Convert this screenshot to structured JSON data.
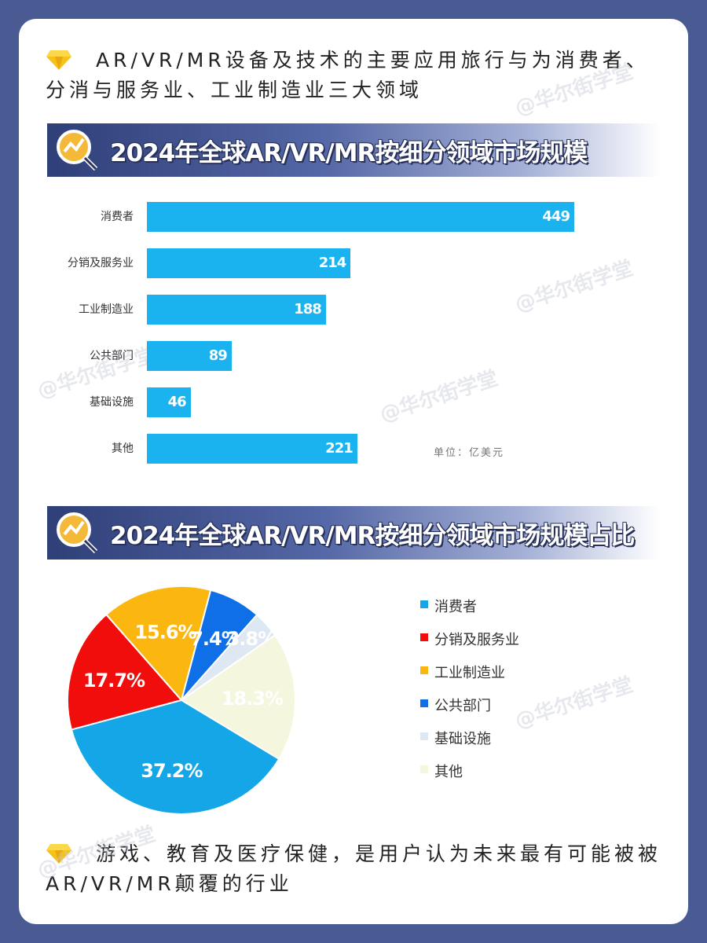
{
  "intro_text": "AR/VR/MR设备及技术的主要应用旅行与为消费者、分消与服务业、工业制造业三大领域",
  "outro_text": "游戏、教育及医疗保健，是用户认为未来最有可能被被AR/VR/MR颠覆的行业",
  "watermark": "@华尔街学堂",
  "banner1_title": "2024年全球AR/VR/MR按细分领域市场规模",
  "banner2_title": "2024年全球AR/VR/MR按细分领域市场规模占比",
  "colors": {
    "bar": "#1ab3ef",
    "pie": [
      "#14a6e6",
      "#f20d0d",
      "#fbb710",
      "#0e6fe6",
      "#dde8f3",
      "#f4f6dd"
    ]
  },
  "chart_data": [
    {
      "type": "bar",
      "orientation": "horizontal",
      "categories": [
        "消费者",
        "分销及服务业",
        "工业制造业",
        "公共部门",
        "基础设施",
        "其他"
      ],
      "values": [
        449,
        214,
        188,
        89,
        46,
        221
      ],
      "unit": "单位：亿美元",
      "xlim": [
        0,
        520
      ]
    },
    {
      "type": "pie",
      "labels": [
        "消费者",
        "分销及服务业",
        "工业制造业",
        "公共部门",
        "基础设施",
        "其他"
      ],
      "values": [
        37.2,
        17.7,
        15.6,
        7.4,
        3.8,
        18.3
      ],
      "value_labels": [
        "37.2%",
        "17.7%",
        "15.6%",
        "7.4%",
        "3.8%",
        "18.3%"
      ],
      "legend": "right"
    }
  ]
}
